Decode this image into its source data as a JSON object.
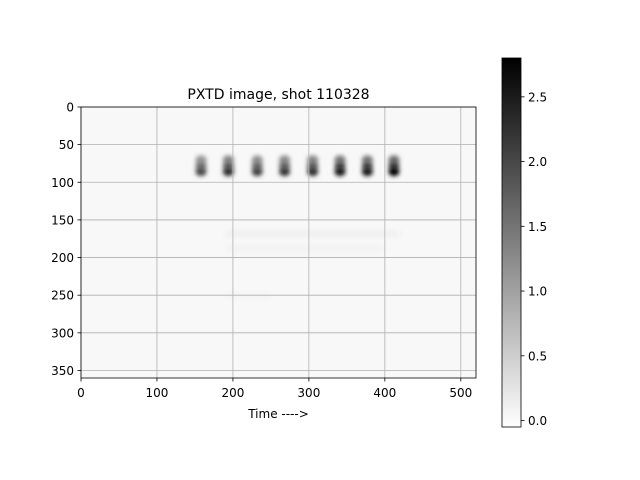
{
  "chart_data": {
    "type": "heatmap",
    "title": "PXTD image, shot 110328",
    "xlabel": "Time ---->",
    "ylabel": "",
    "xlim": [
      0,
      520
    ],
    "ylim": [
      360,
      0
    ],
    "y_inverted": true,
    "grid": true,
    "colormap": "gray_r",
    "x_ticks": [
      0,
      100,
      200,
      300,
      400,
      500
    ],
    "y_ticks": [
      0,
      50,
      100,
      150,
      200,
      250,
      300,
      350
    ],
    "image_extent": {
      "x": [
        0,
        520
      ],
      "y": [
        355,
        0
      ]
    },
    "background_value": 0.05,
    "colorbar": {
      "range": [
        -0.05,
        2.8
      ],
      "ticks": [
        0.0,
        0.5,
        1.0,
        1.5,
        2.0,
        2.5
      ],
      "tick_labels": [
        "0.0",
        "0.5",
        "1.0",
        "1.5",
        "2.0",
        "2.5"
      ]
    },
    "pulse_columns": [
      {
        "x": 158,
        "peak": 2.0
      },
      {
        "x": 194,
        "peak": 2.3
      },
      {
        "x": 232,
        "peak": 2.1
      },
      {
        "x": 268,
        "peak": 2.2
      },
      {
        "x": 305,
        "peak": 2.3
      },
      {
        "x": 341,
        "peak": 2.6
      },
      {
        "x": 377,
        "peak": 2.6
      },
      {
        "x": 412,
        "peak": 2.8
      }
    ],
    "pulse_rows_y": [
      70,
      78,
      86
    ],
    "faint_bands": [
      {
        "y": 168,
        "x_range": [
          190,
          420
        ],
        "value": 0.15
      },
      {
        "y": 188,
        "x_range": [
          190,
          400
        ],
        "value": 0.12
      },
      {
        "y": 250,
        "x_range": [
          190,
          250
        ],
        "value": 0.08
      }
    ]
  }
}
